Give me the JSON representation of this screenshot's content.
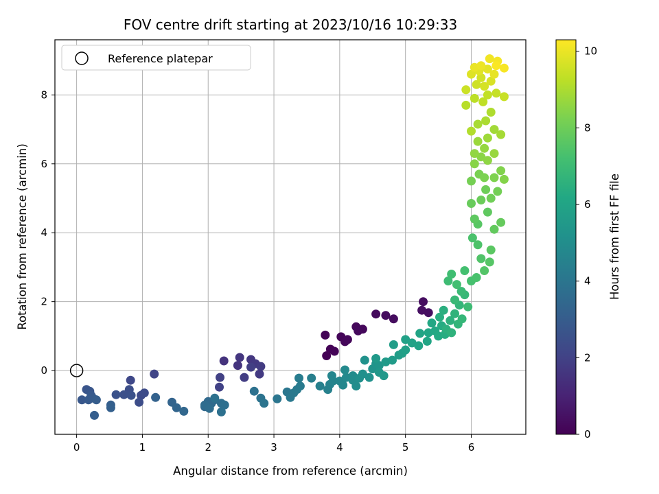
{
  "chart_data": {
    "type": "scatter",
    "title": "FOV centre drift starting at 2023/10/16 10:29:33",
    "xlabel": "Angular distance from reference (arcmin)",
    "ylabel": "Rotation from reference (arcmin)",
    "xlim": [
      -0.33,
      6.83
    ],
    "ylim": [
      -1.85,
      9.6
    ],
    "xticks": [
      "0",
      "1",
      "2",
      "3",
      "4",
      "5",
      "6"
    ],
    "yticks": [
      "0",
      "2",
      "4",
      "6",
      "8"
    ],
    "grid": true,
    "legend": {
      "position": "top-left",
      "entries": [
        "Reference platepar"
      ]
    },
    "reference_point": {
      "x": 0,
      "y": 0
    },
    "colorbar": {
      "label": "Hours from first FF file",
      "colormap": "viridis",
      "range": [
        0,
        10.3
      ],
      "ticks": [
        "0",
        "2",
        "4",
        "6",
        "8",
        "10"
      ]
    },
    "points": [
      [
        3.8,
        0.43,
        0.02
      ],
      [
        3.86,
        0.62,
        0.05
      ],
      [
        3.78,
        1.03,
        0.08
      ],
      [
        3.92,
        0.56,
        0.1
      ],
      [
        4.02,
        0.98,
        0.12
      ],
      [
        4.08,
        0.84,
        0.15
      ],
      [
        4.12,
        0.9,
        0.18
      ],
      [
        4.25,
        1.27,
        0.2
      ],
      [
        4.35,
        1.2,
        0.22
      ],
      [
        4.28,
        1.15,
        0.25
      ],
      [
        4.55,
        1.64,
        0.28
      ],
      [
        4.7,
        1.6,
        0.3
      ],
      [
        4.82,
        1.5,
        0.32
      ],
      [
        5.27,
        2.0,
        0.35
      ],
      [
        5.35,
        1.68,
        0.38
      ],
      [
        5.25,
        1.75,
        0.4
      ],
      [
        2.24,
        0.28,
        1.5
      ],
      [
        2.45,
        0.15,
        1.55
      ],
      [
        2.48,
        0.38,
        1.6
      ],
      [
        2.65,
        0.32,
        1.65
      ],
      [
        2.72,
        0.2,
        1.7
      ],
      [
        2.78,
        -0.1,
        1.75
      ],
      [
        2.8,
        0.12,
        1.8
      ],
      [
        2.55,
        -0.2,
        1.85
      ],
      [
        2.65,
        0.1,
        1.9
      ],
      [
        2.18,
        -0.2,
        1.95
      ],
      [
        2.17,
        -0.48,
        2.0
      ],
      [
        1.18,
        -0.1,
        2.1
      ],
      [
        0.82,
        -0.28,
        2.2
      ],
      [
        0.98,
        -0.72,
        2.3
      ],
      [
        1.03,
        -0.65,
        2.35
      ],
      [
        0.95,
        -0.92,
        2.4
      ],
      [
        0.8,
        -0.55,
        2.45
      ],
      [
        0.72,
        -0.7,
        2.5
      ],
      [
        0.83,
        -0.72,
        2.55
      ],
      [
        0.6,
        -0.7,
        2.6
      ],
      [
        0.15,
        -0.55,
        2.7
      ],
      [
        0.2,
        -0.6,
        2.75
      ],
      [
        0.08,
        -0.85,
        2.8
      ],
      [
        0.22,
        -0.72,
        2.85
      ],
      [
        0.18,
        -0.85,
        2.9
      ],
      [
        0.25,
        -0.8,
        2.95
      ],
      [
        0.3,
        -0.85,
        3.0
      ],
      [
        0.27,
        -1.3,
        3.05
      ],
      [
        0.52,
        -1.0,
        3.1
      ],
      [
        0.52,
        -1.08,
        3.15
      ],
      [
        1.2,
        -0.78,
        3.2
      ],
      [
        1.45,
        -0.92,
        3.3
      ],
      [
        1.52,
        -1.08,
        3.35
      ],
      [
        1.63,
        -1.18,
        3.4
      ],
      [
        1.95,
        -1.05,
        3.45
      ],
      [
        2.0,
        -0.9,
        3.5
      ],
      [
        2.05,
        -0.95,
        3.55
      ],
      [
        2.1,
        -0.85,
        3.6
      ],
      [
        1.95,
        -1.0,
        3.62
      ],
      [
        2.02,
        -1.1,
        3.65
      ],
      [
        2.2,
        -0.95,
        3.7
      ],
      [
        2.25,
        -1.0,
        3.75
      ],
      [
        2.2,
        -1.2,
        3.8
      ],
      [
        2.1,
        -0.8,
        3.82
      ],
      [
        2.7,
        -0.6,
        3.85
      ],
      [
        2.8,
        -0.8,
        3.9
      ],
      [
        2.85,
        -0.95,
        3.95
      ],
      [
        3.05,
        -0.82,
        4.0
      ],
      [
        3.2,
        -0.62,
        4.05
      ],
      [
        3.25,
        -0.78,
        4.1
      ],
      [
        3.3,
        -0.65,
        4.15
      ],
      [
        3.35,
        -0.55,
        4.2
      ],
      [
        3.4,
        -0.45,
        4.25
      ],
      [
        3.38,
        -0.22,
        4.3
      ],
      [
        3.57,
        -0.22,
        4.4
      ],
      [
        3.7,
        -0.45,
        4.45
      ],
      [
        3.82,
        -0.55,
        4.5
      ],
      [
        3.85,
        -0.4,
        4.55
      ],
      [
        3.9,
        -0.3,
        4.6
      ],
      [
        3.88,
        -0.15,
        4.65
      ],
      [
        4.0,
        -0.3,
        4.7
      ],
      [
        4.05,
        -0.42,
        4.75
      ],
      [
        4.1,
        -0.2,
        4.8
      ],
      [
        4.08,
        0.02,
        4.85
      ],
      [
        4.2,
        -0.15,
        4.9
      ],
      [
        4.2,
        -0.28,
        4.95
      ],
      [
        4.25,
        -0.45,
        5.0
      ],
      [
        4.3,
        -0.22,
        5.05
      ],
      [
        4.35,
        -0.1,
        5.1
      ],
      [
        4.45,
        -0.2,
        5.15
      ],
      [
        4.38,
        0.3,
        5.2
      ],
      [
        4.5,
        0.05,
        5.25
      ],
      [
        4.55,
        0.2,
        5.3
      ],
      [
        4.6,
        0.15,
        5.35
      ],
      [
        4.6,
        -0.05,
        5.4
      ],
      [
        4.67,
        -0.15,
        5.45
      ],
      [
        4.55,
        0.35,
        5.5
      ],
      [
        4.7,
        0.25,
        5.55
      ],
      [
        4.8,
        0.3,
        5.6
      ],
      [
        4.9,
        0.45,
        5.65
      ],
      [
        4.82,
        0.75,
        5.7
      ],
      [
        4.95,
        0.5,
        5.75
      ],
      [
        5.0,
        0.6,
        5.8
      ],
      [
        5.0,
        0.9,
        5.85
      ],
      [
        5.1,
        0.8,
        5.9
      ],
      [
        5.2,
        0.72,
        5.95
      ],
      [
        5.22,
        1.08,
        6.0
      ],
      [
        5.33,
        0.85,
        6.05
      ],
      [
        5.35,
        1.1,
        6.1
      ],
      [
        5.4,
        1.38,
        6.15
      ],
      [
        5.45,
        1.15,
        6.2
      ],
      [
        5.5,
        1.0,
        6.25
      ],
      [
        5.55,
        1.3,
        6.3
      ],
      [
        5.6,
        1.05,
        6.35
      ],
      [
        5.52,
        1.55,
        6.4
      ],
      [
        5.58,
        1.75,
        6.45
      ],
      [
        5.62,
        1.2,
        6.5
      ],
      [
        5.68,
        1.45,
        6.55
      ],
      [
        5.7,
        1.1,
        6.6
      ],
      [
        5.75,
        1.65,
        6.65
      ],
      [
        5.8,
        1.35,
        6.7
      ],
      [
        5.82,
        1.9,
        6.75
      ],
      [
        5.86,
        1.5,
        6.8
      ],
      [
        5.9,
        2.2,
        6.85
      ],
      [
        5.75,
        2.05,
        6.9
      ],
      [
        5.85,
        2.3,
        6.95
      ],
      [
        5.95,
        1.85,
        7.0
      ],
      [
        5.65,
        2.6,
        7.05
      ],
      [
        5.7,
        2.8,
        7.1
      ],
      [
        5.78,
        2.5,
        7.15
      ],
      [
        5.9,
        2.9,
        7.2
      ],
      [
        6.0,
        2.6,
        7.25
      ],
      [
        6.08,
        2.7,
        7.3
      ],
      [
        6.02,
        3.85,
        7.35
      ],
      [
        6.1,
        3.65,
        7.4
      ],
      [
        6.15,
        3.25,
        7.45
      ],
      [
        6.2,
        2.9,
        7.5
      ],
      [
        6.28,
        3.15,
        7.55
      ],
      [
        6.1,
        4.25,
        7.6
      ],
      [
        6.3,
        3.5,
        7.65
      ],
      [
        6.05,
        4.4,
        7.7
      ],
      [
        6.25,
        4.6,
        7.75
      ],
      [
        6.35,
        4.1,
        7.8
      ],
      [
        6.45,
        4.3,
        7.85
      ],
      [
        6.0,
        4.85,
        7.9
      ],
      [
        6.15,
        4.95,
        7.95
      ],
      [
        6.22,
        5.25,
        8.0
      ],
      [
        6.3,
        5.0,
        8.05
      ],
      [
        6.4,
        5.2,
        8.1
      ],
      [
        6.0,
        5.5,
        8.15
      ],
      [
        6.12,
        5.7,
        8.2
      ],
      [
        6.2,
        5.6,
        8.25
      ],
      [
        6.35,
        5.6,
        8.3
      ],
      [
        6.45,
        5.8,
        8.35
      ],
      [
        6.5,
        5.55,
        8.4
      ],
      [
        6.05,
        6.0,
        8.45
      ],
      [
        6.15,
        6.2,
        8.5
      ],
      [
        6.25,
        6.1,
        8.55
      ],
      [
        6.05,
        6.3,
        8.6
      ],
      [
        6.2,
        6.45,
        8.65
      ],
      [
        6.35,
        6.3,
        8.7
      ],
      [
        6.1,
        6.65,
        8.75
      ],
      [
        6.25,
        6.75,
        8.8
      ],
      [
        6.35,
        7.0,
        8.85
      ],
      [
        6.45,
        6.85,
        8.9
      ],
      [
        6.1,
        7.15,
        8.95
      ],
      [
        6.22,
        7.25,
        9.0
      ],
      [
        6.3,
        7.5,
        9.05
      ],
      [
        6.0,
        6.95,
        9.1
      ],
      [
        5.92,
        7.7,
        9.2
      ],
      [
        6.05,
        7.9,
        9.25
      ],
      [
        6.18,
        7.8,
        9.3
      ],
      [
        6.25,
        8.0,
        9.35
      ],
      [
        6.38,
        8.05,
        9.4
      ],
      [
        6.5,
        7.95,
        9.45
      ],
      [
        5.92,
        8.15,
        9.5
      ],
      [
        6.08,
        8.3,
        9.55
      ],
      [
        6.15,
        8.5,
        9.6
      ],
      [
        6.2,
        8.25,
        9.65
      ],
      [
        6.3,
        8.4,
        9.7
      ],
      [
        6.0,
        8.6,
        9.8
      ],
      [
        6.12,
        8.7,
        9.85
      ],
      [
        6.25,
        8.75,
        9.9
      ],
      [
        6.35,
        8.6,
        9.95
      ],
      [
        6.05,
        8.8,
        10.0
      ],
      [
        6.15,
        8.85,
        10.05
      ],
      [
        6.28,
        9.05,
        10.1
      ],
      [
        6.4,
        8.98,
        10.15
      ],
      [
        6.5,
        8.78,
        10.2
      ],
      [
        6.38,
        8.85,
        10.25
      ]
    ]
  }
}
